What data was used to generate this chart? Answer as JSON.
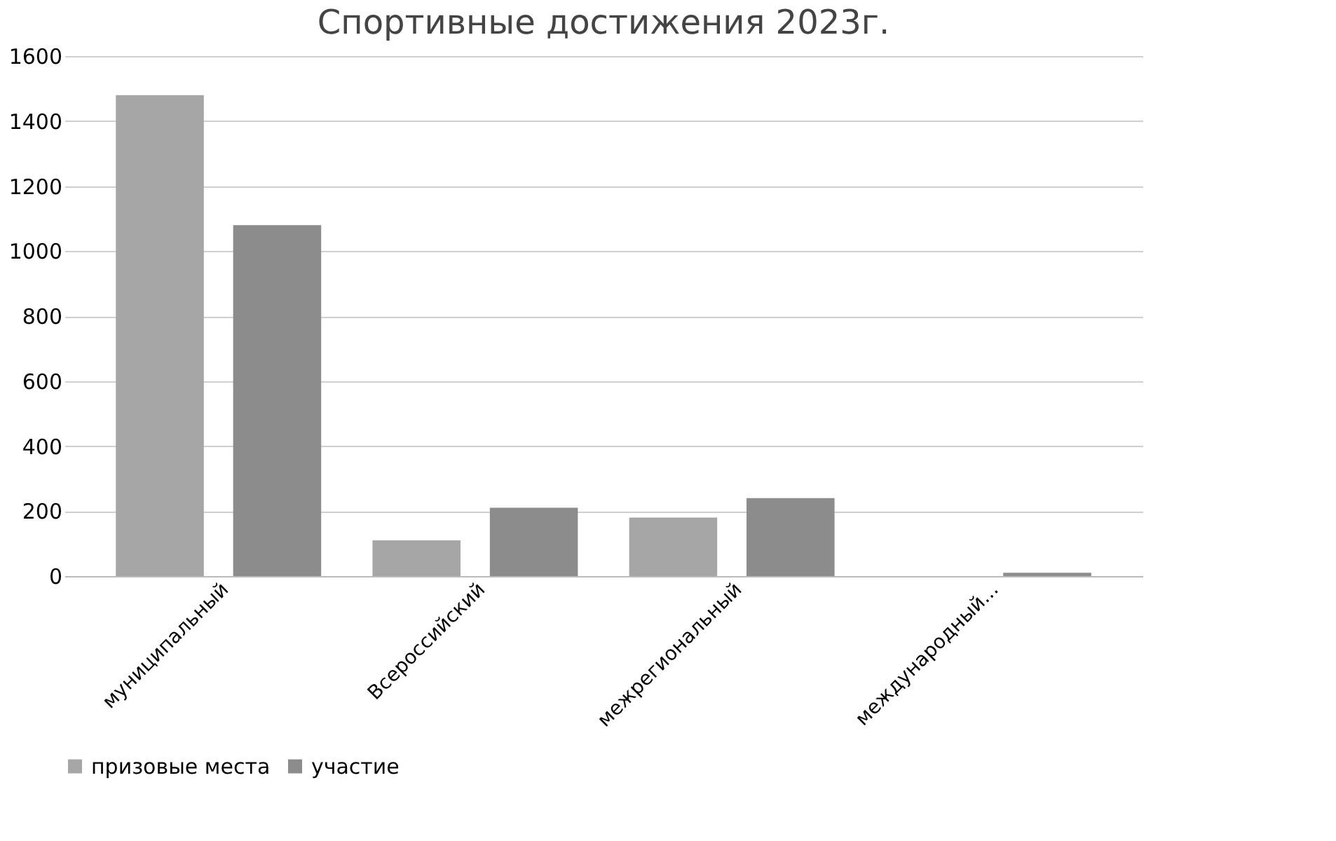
{
  "chart_data": {
    "type": "bar",
    "title": "Спортивные достижения 2023г.",
    "categories": [
      "муниципальный",
      "Всероссийский",
      "межрегиональный",
      "международный..."
    ],
    "series": [
      {
        "name": "призовые места",
        "color": "#a6a6a6",
        "values": [
          1480,
          110,
          180,
          0
        ]
      },
      {
        "name": "участие",
        "color": "#8c8c8c",
        "values": [
          1080,
          210,
          240,
          10
        ]
      }
    ],
    "ylim": [
      0,
      1600
    ],
    "yticks": [
      0,
      200,
      400,
      600,
      800,
      1000,
      1200,
      1400,
      1600
    ],
    "grid": "y",
    "legend": "bottom"
  }
}
